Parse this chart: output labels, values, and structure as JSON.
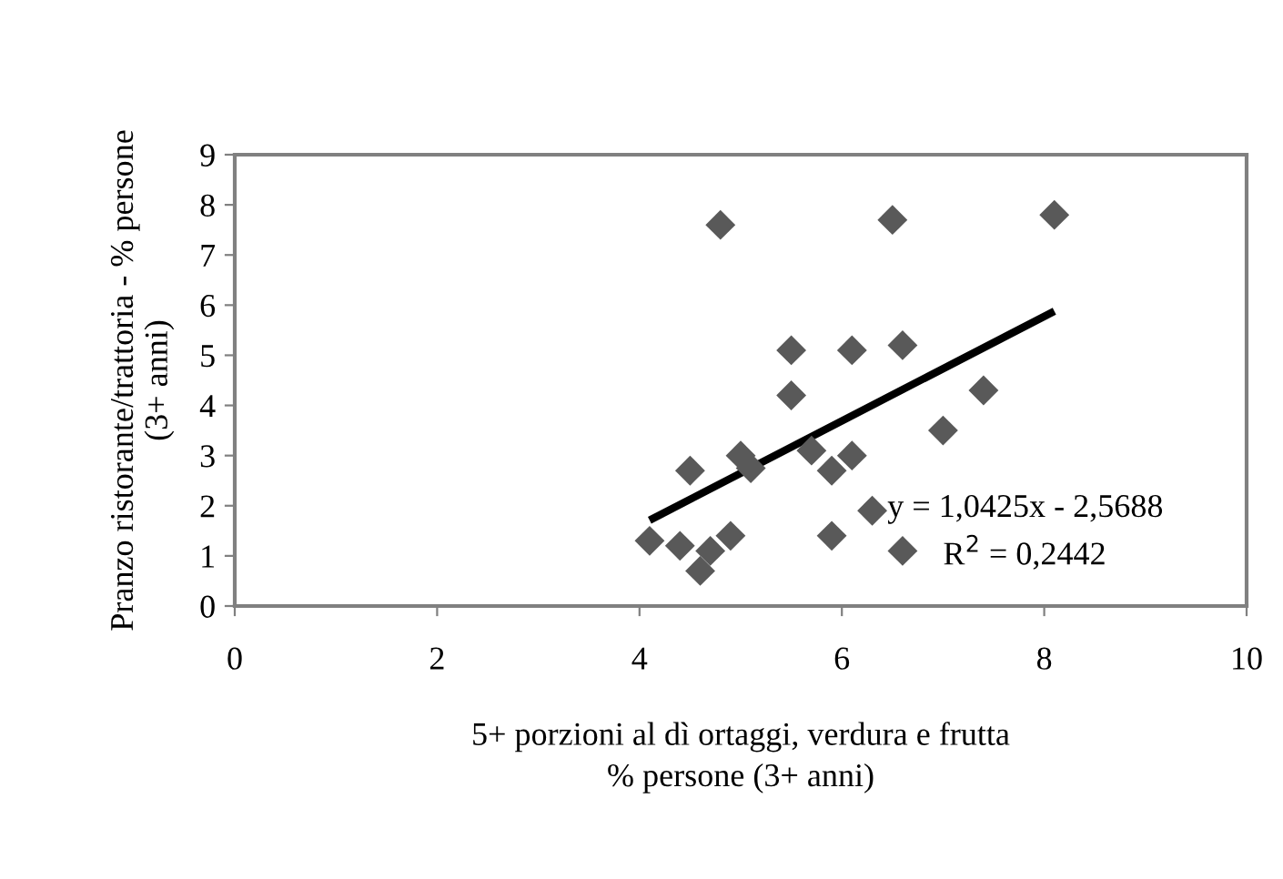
{
  "chart_data": {
    "type": "scatter",
    "xlabel": "5+ porzioni al dì ortaggi, verdura e frutta\n% persone (3+ anni)",
    "ylabel": "Pranzo ristorante/trattoria - % persone\n(3+ anni)",
    "xlim": [
      0,
      10
    ],
    "xticks": [
      0,
      2,
      4,
      6,
      8,
      10
    ],
    "ylim": [
      0,
      9
    ],
    "yticks": [
      0,
      1,
      2,
      3,
      4,
      5,
      6,
      7,
      8,
      9
    ],
    "grid": false,
    "legend": false,
    "series": [
      {
        "color": "#595959",
        "marker": "diamond",
        "x": [
          4.1,
          4.4,
          4.5,
          4.6,
          4.7,
          4.8,
          4.9,
          5.0,
          5.1,
          5.5,
          5.5,
          5.7,
          5.9,
          5.9,
          6.1,
          6.1,
          6.3,
          6.5,
          6.6,
          6.6,
          7.0,
          7.4,
          8.1
        ],
        "values": [
          1.3,
          1.2,
          2.7,
          0.7,
          1.1,
          7.6,
          1.4,
          3.0,
          2.75,
          5.1,
          4.2,
          3.1,
          2.7,
          1.4,
          5.1,
          3.0,
          1.9,
          7.7,
          5.2,
          1.1,
          3.5,
          4.3,
          7.8
        ]
      },
      {
        "type": "line",
        "color": "#000000",
        "marker": "none",
        "line_style": "solid",
        "x": [
          4.1,
          8.1
        ],
        "values": [
          1.71,
          5.88
        ]
      }
    ],
    "annotations": [
      "y = 1,0425x - 2,5688",
      "R$^{2}$ = 0,2442"
    ]
  }
}
